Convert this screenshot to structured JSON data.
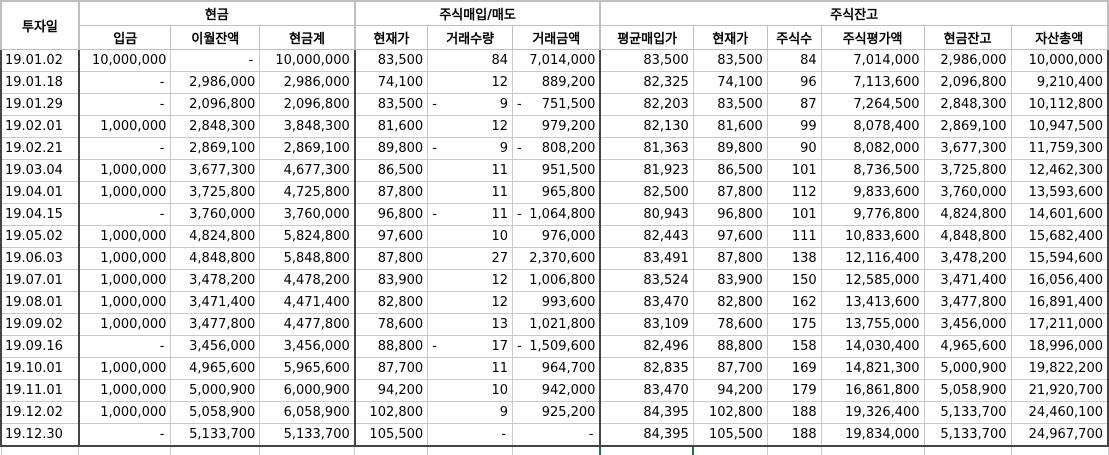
{
  "header": {
    "corner": "투자일",
    "groups": [
      "현금",
      "주식매입/매도",
      "주식잔고"
    ],
    "columns": [
      "입금",
      "이월잔액",
      "현금계",
      "현재가",
      "거래수량",
      "거래금액",
      "평균매입가",
      "현재가",
      "주식수",
      "주식평가액",
      "현금잔고",
      "자산총액"
    ]
  },
  "rows": [
    [
      "19.01.02",
      "10,000,000",
      "-",
      "10,000,000",
      "83,500",
      "84",
      "7,014,000",
      "83,500",
      "83,500",
      "84",
      "7,014,000",
      "2,986,000",
      "10,000,000"
    ],
    [
      "19.01.18",
      "-",
      "2,986,000",
      "2,986,000",
      "74,100",
      "12",
      "889,200",
      "82,325",
      "74,100",
      "96",
      "7,113,600",
      "2,096,800",
      "9,210,400"
    ],
    [
      "19.01.29",
      "-",
      "2,096,800",
      "2,096,800",
      "83,500",
      "- 9",
      "- 751,500",
      "82,203",
      "83,500",
      "87",
      "7,264,500",
      "2,848,300",
      "10,112,800"
    ],
    [
      "19.02.01",
      "1,000,000",
      "2,848,300",
      "3,848,300",
      "81,600",
      "12",
      "979,200",
      "82,130",
      "81,600",
      "99",
      "8,078,400",
      "2,869,100",
      "10,947,500"
    ],
    [
      "19.02.21",
      "-",
      "2,869,100",
      "2,869,100",
      "89,800",
      "- 9",
      "- 808,200",
      "81,363",
      "89,800",
      "90",
      "8,082,000",
      "3,677,300",
      "11,759,300"
    ],
    [
      "19.03.04",
      "1,000,000",
      "3,677,300",
      "4,677,300",
      "86,500",
      "11",
      "951,500",
      "81,923",
      "86,500",
      "101",
      "8,736,500",
      "3,725,800",
      "12,462,300"
    ],
    [
      "19.04.01",
      "1,000,000",
      "3,725,800",
      "4,725,800",
      "87,800",
      "11",
      "965,800",
      "82,500",
      "87,800",
      "112",
      "9,833,600",
      "3,760,000",
      "13,593,600"
    ],
    [
      "19.04.15",
      "-",
      "3,760,000",
      "3,760,000",
      "96,800",
      "- 11",
      "- 1,064,800",
      "80,943",
      "96,800",
      "101",
      "9,776,800",
      "4,824,800",
      "14,601,600"
    ],
    [
      "19.05.02",
      "1,000,000",
      "4,824,800",
      "5,824,800",
      "97,600",
      "10",
      "976,000",
      "82,443",
      "97,600",
      "111",
      "10,833,600",
      "4,848,800",
      "15,682,400"
    ],
    [
      "19.06.03",
      "1,000,000",
      "4,848,800",
      "5,848,800",
      "87,800",
      "27",
      "2,370,600",
      "83,491",
      "87,800",
      "138",
      "12,116,400",
      "3,478,200",
      "15,594,600"
    ],
    [
      "19.07.01",
      "1,000,000",
      "3,478,200",
      "4,478,200",
      "83,900",
      "12",
      "1,006,800",
      "83,524",
      "83,900",
      "150",
      "12,585,000",
      "3,471,400",
      "16,056,400"
    ],
    [
      "19.08.01",
      "1,000,000",
      "3,471,400",
      "4,471,400",
      "82,800",
      "12",
      "993,600",
      "83,470",
      "82,800",
      "162",
      "13,413,600",
      "3,477,800",
      "16,891,400"
    ],
    [
      "19.09.02",
      "1,000,000",
      "3,477,800",
      "4,477,800",
      "78,600",
      "13",
      "1,021,800",
      "83,109",
      "78,600",
      "175",
      "13,755,000",
      "3,456,000",
      "17,211,000"
    ],
    [
      "19.09.16",
      "-",
      "3,456,000",
      "3,456,000",
      "88,800",
      "- 17",
      "- 1,509,600",
      "82,496",
      "88,800",
      "158",
      "14,030,400",
      "4,965,600",
      "18,996,000"
    ],
    [
      "19.10.01",
      "1,000,000",
      "4,965,600",
      "5,965,600",
      "87,700",
      "11",
      "964,700",
      "82,835",
      "87,700",
      "169",
      "14,821,300",
      "5,000,900",
      "19,822,200"
    ],
    [
      "19.11.01",
      "1,000,000",
      "5,000,900",
      "6,000,900",
      "94,200",
      "10",
      "942,000",
      "83,470",
      "94,200",
      "179",
      "16,861,800",
      "5,058,900",
      "21,920,700"
    ],
    [
      "19.12.02",
      "1,000,000",
      "5,058,900",
      "6,058,900",
      "102,800",
      "9",
      "925,200",
      "84,395",
      "102,800",
      "188",
      "19,326,400",
      "5,133,700",
      "24,460,100"
    ],
    [
      "19.12.30",
      "-",
      "5,133,700",
      "5,133,700",
      "105,500",
      "-",
      "-",
      "84,395",
      "105,500",
      "188",
      "19,834,000",
      "5,133,700",
      "24,967,700"
    ]
  ]
}
